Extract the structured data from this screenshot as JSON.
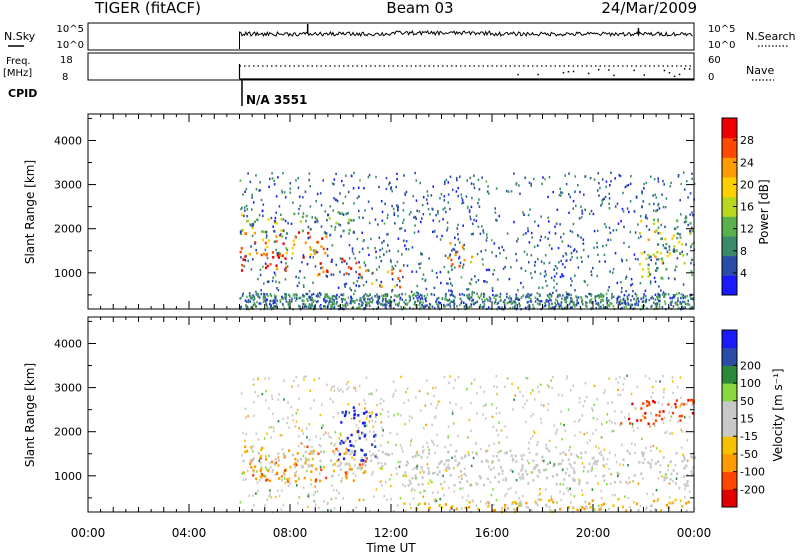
{
  "header": {
    "station": "TIGER (fitACF)",
    "beam": "Beam 03",
    "date": "24/Mar/2009"
  },
  "noise_panel": {
    "left_label": "N.Sky",
    "right_label": "N.Search",
    "left_ticks": [
      "10^5",
      "10^0"
    ],
    "right_ticks": [
      "10^5",
      "10^0"
    ]
  },
  "freq_panel": {
    "left_label_1": "Freq.",
    "left_label_2": "[MHz]",
    "right_label": "Nave",
    "left_ticks": [
      "18",
      "8"
    ],
    "right_ticks": [
      "60",
      "0"
    ]
  },
  "cpid": {
    "label": "CPID",
    "value": "N/A 3551"
  },
  "colors": {
    "power_scale": [
      "#1a1aff",
      "#2a4ea8",
      "#3a8a6a",
      "#5ab04a",
      "#b8d820",
      "#ffd000",
      "#ff9a00",
      "#ff4a00",
      "#ee0000"
    ],
    "velocity_scale": [
      "#e00000",
      "#ff4500",
      "#ff9a00",
      "#f5c000",
      "#c8c8c8",
      "#c8c8c8",
      "#8ad840",
      "#2a8a3a",
      "#2a4ea8",
      "#1a1aff"
    ],
    "ground_scatter": "#c8c8c8"
  },
  "chart_data": [
    {
      "type": "heatmap",
      "name": "power",
      "ylabel": "Slant Range [km]",
      "y_ticks": [
        1000,
        2000,
        3000,
        4000
      ],
      "ylim": [
        180,
        4600
      ],
      "xlim": [
        0,
        24
      ],
      "colorbar_label": "Power [dB]",
      "colorbar_ticks": [
        4,
        8,
        12,
        16,
        20,
        24,
        28
      ],
      "colorbar_range": [
        0,
        32
      ],
      "data_start_hour": 6.0,
      "features": [
        {
          "t0": 6.0,
          "t1": 7.8,
          "r0": 1050,
          "r1": 1500,
          "level": 30
        },
        {
          "t0": 6.0,
          "t1": 9.6,
          "r0": 1300,
          "r1": 2000,
          "level": 24
        },
        {
          "t0": 9.0,
          "t1": 11.0,
          "r0": 950,
          "r1": 1350,
          "level": 28
        },
        {
          "t0": 10.6,
          "t1": 12.4,
          "r0": 700,
          "r1": 1100,
          "level": 22
        },
        {
          "t0": 6.0,
          "t1": 10.5,
          "r0": 1900,
          "r1": 2400,
          "level": 12
        },
        {
          "t0": 14.2,
          "t1": 15.2,
          "r0": 1100,
          "r1": 1700,
          "level": 20
        },
        {
          "t0": 21.8,
          "t1": 24.0,
          "r0": 900,
          "r1": 2300,
          "level": 16
        }
      ]
    },
    {
      "type": "heatmap",
      "name": "velocity",
      "ylabel": "Slant Range [km]",
      "xlabel": "Time UT",
      "x_ticks": [
        "00:00",
        "04:00",
        "08:00",
        "12:00",
        "16:00",
        "20:00",
        "00:00"
      ],
      "y_ticks": [
        1000,
        2000,
        3000,
        4000
      ],
      "ylim": [
        180,
        4600
      ],
      "xlim": [
        0,
        24
      ],
      "colorbar_label": "Velocity [m s⁻¹]",
      "colorbar_ticks": [
        -200,
        -100,
        -50,
        -15,
        15,
        50,
        100,
        200
      ],
      "data_start_hour": 6.0,
      "features": [
        {
          "t0": 6.0,
          "t1": 11.0,
          "r0": 900,
          "r1": 1700,
          "velocity": -80
        },
        {
          "t0": 6.0,
          "t1": 12.0,
          "r0": 1200,
          "r1": 1600,
          "velocity": 0
        },
        {
          "t0": 9.8,
          "t1": 11.4,
          "r0": 1300,
          "r1": 2700,
          "velocity": 220
        },
        {
          "t0": 12.5,
          "t1": 24.0,
          "r0": 800,
          "r1": 1600,
          "velocity": 0
        },
        {
          "t0": 12.0,
          "t1": 24.0,
          "r0": 200,
          "r1": 500,
          "velocity": -40
        },
        {
          "t0": 21.0,
          "t1": 24.0,
          "r0": 2200,
          "r1": 2800,
          "velocity": -180
        }
      ]
    }
  ]
}
